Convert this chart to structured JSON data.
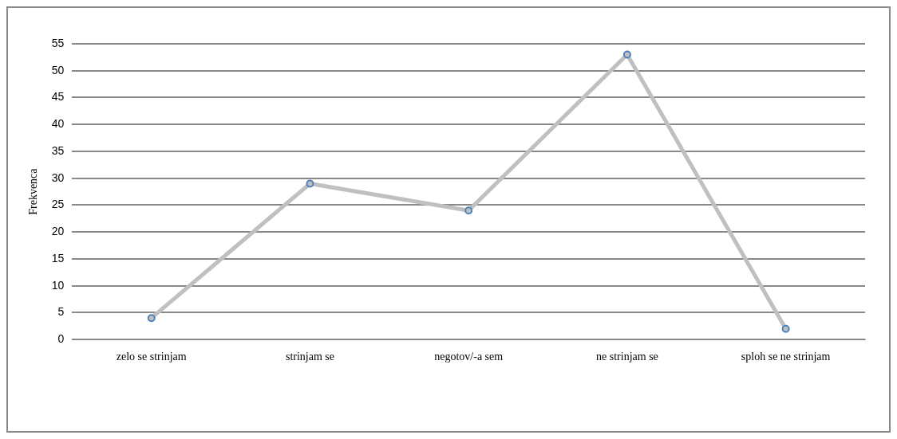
{
  "chart_data": {
    "type": "line",
    "ylabel": "Frekvenca",
    "categories": [
      "zelo se strinjam",
      "strinjam se",
      "negotov/-a sem",
      "ne strinjam se",
      "sploh se ne strinjam"
    ],
    "series": [
      {
        "color": "#c0c0c0",
        "values": [
          4,
          29,
          24,
          53,
          2
        ]
      }
    ],
    "ylim": [
      0,
      55
    ],
    "yticks": [
      0,
      5,
      10,
      15,
      20,
      25,
      30,
      35,
      40,
      45,
      50,
      55
    ],
    "grid": "y",
    "legend": false,
    "marker": "circle"
  }
}
